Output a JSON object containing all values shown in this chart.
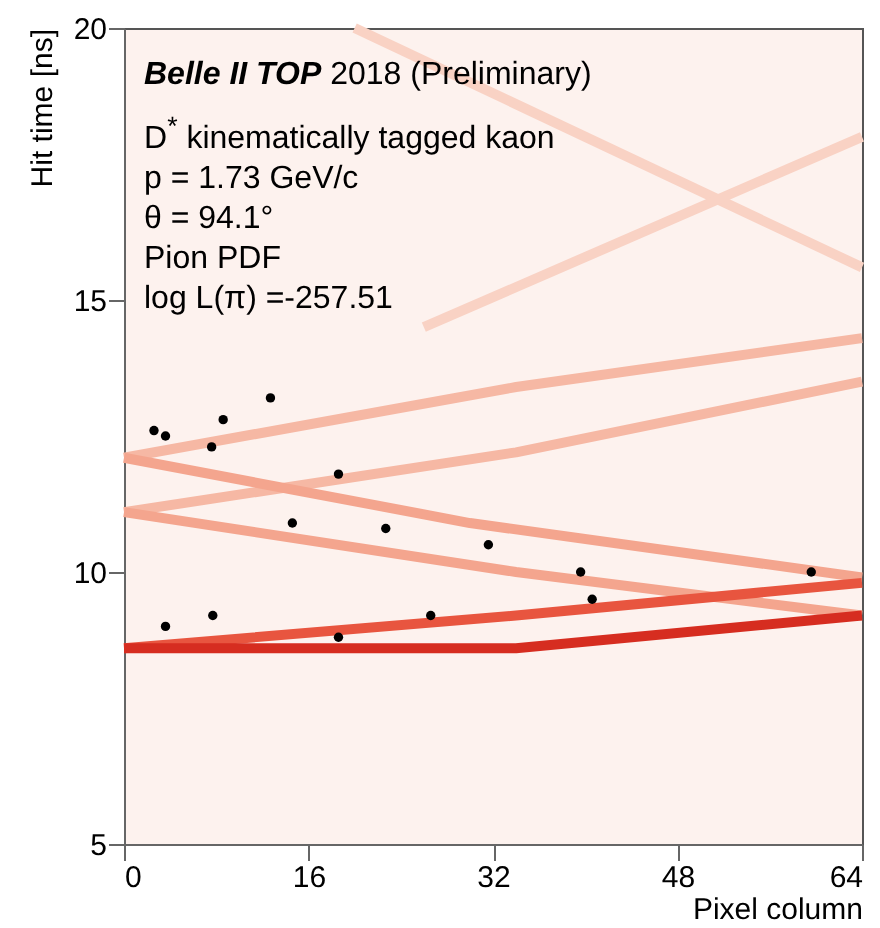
{
  "chart_data": {
    "type": "scatter",
    "xlabel": "Pixel column",
    "ylabel": "Hit time [ns]",
    "xlim": [
      0,
      64
    ],
    "ylim": [
      5,
      20
    ],
    "xticks": [
      0,
      16,
      32,
      48,
      64
    ],
    "yticks": [
      5,
      10,
      15,
      20
    ],
    "grid": false,
    "annotations": [
      "Belle II TOP",
      "2018 (Preliminary)",
      "D$^{*}$ kinematically tagged kaon",
      "p = 1.73 GeV/c",
      "θ = 94.1°",
      "Pion PDF",
      "log L(π) =-257.51"
    ],
    "series": [
      {
        "type": "line",
        "color": "#f6b8a4",
        "x": [
          0,
          34,
          64
        ],
        "values": [
          12.1,
          13.4,
          14.3
        ]
      },
      {
        "type": "line",
        "color": "#f6b8a4",
        "x": [
          0,
          34,
          64
        ],
        "values": [
          11.1,
          12.2,
          13.5
        ]
      },
      {
        "type": "line",
        "color": "#f4a58e",
        "x": [
          0,
          30,
          64
        ],
        "values": [
          12.1,
          10.9,
          9.9
        ]
      },
      {
        "type": "line",
        "color": "#f4a58e",
        "x": [
          0,
          34,
          64
        ],
        "values": [
          11.1,
          10.0,
          9.2
        ]
      },
      {
        "type": "line",
        "color": "#f9d2c4",
        "x": [
          20,
          64
        ],
        "values": [
          20,
          15.6
        ]
      },
      {
        "type": "line",
        "color": "#f9d2c4",
        "x": [
          26,
          64
        ],
        "values": [
          14.5,
          18
        ]
      },
      {
        "type": "line",
        "color": "#e8553f",
        "x": [
          0,
          34,
          64
        ],
        "values": [
          8.6,
          9.2,
          9.8
        ]
      },
      {
        "type": "line",
        "color": "#d62d20",
        "x": [
          0,
          34,
          64
        ],
        "values": [
          8.6,
          8.6,
          9.2
        ]
      },
      {
        "marker": "circle",
        "color": "#000000",
        "x": [
          2.6,
          3.6,
          7.6,
          8.6,
          12.7,
          18.6,
          14.6,
          22.7,
          31.6,
          3.6,
          7.7,
          18.6,
          26.6,
          39.6,
          40.6,
          59.6
        ],
        "values": [
          12.6,
          12.5,
          12.3,
          12.8,
          13.2,
          11.8,
          10.9,
          10.8,
          10.5,
          9.0,
          9.2,
          8.8,
          9.2,
          10.0,
          9.5,
          10.0
        ]
      }
    ]
  }
}
